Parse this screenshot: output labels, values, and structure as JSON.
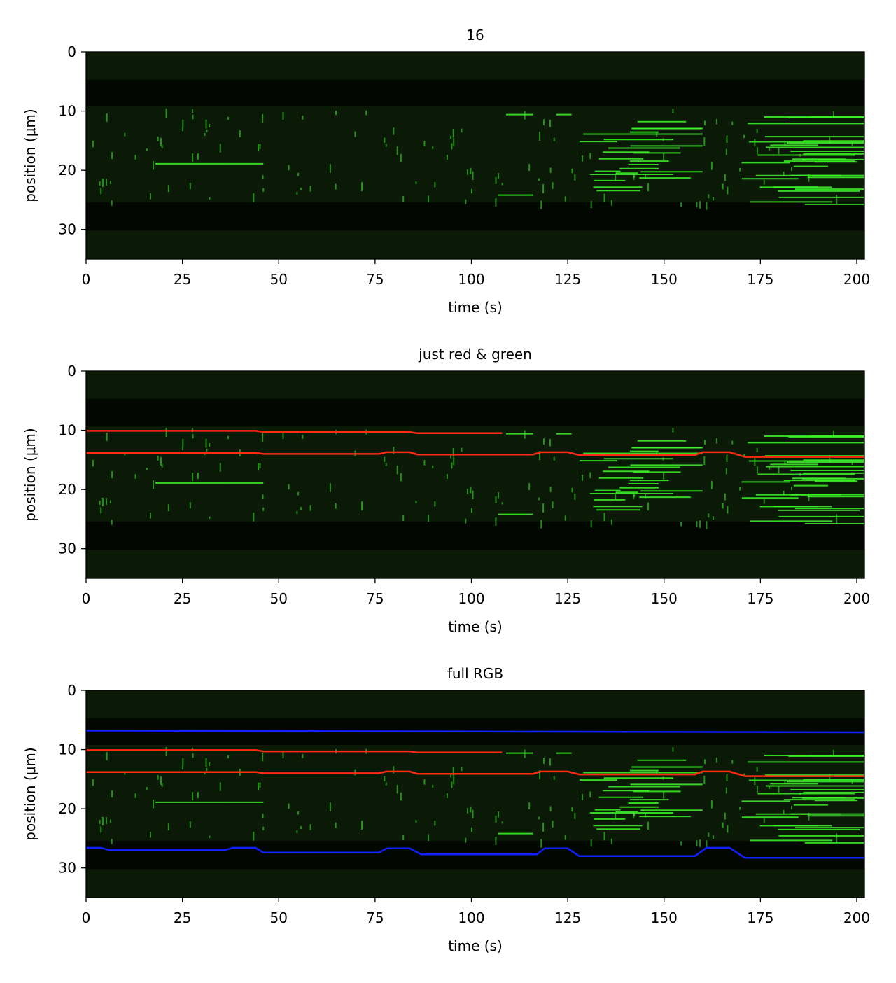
{
  "chart_data": [
    {
      "type": "heatmap",
      "title": "16",
      "xlabel": "time (s)",
      "ylabel": "position (μm)",
      "xlim": [
        0,
        202
      ],
      "ylim": [
        35,
        0
      ],
      "xticks": [
        "0",
        "25",
        "50",
        "75",
        "100",
        "125",
        "150",
        "175",
        "200"
      ],
      "yticks": [
        "0",
        "10",
        "20",
        "30"
      ],
      "colors": {
        "background": "#0b1a06",
        "dark_band": "#030702",
        "green": "#3ef52a",
        "red": "#ff2a10",
        "blue": "#1020ff"
      },
      "channels": [
        "green"
      ],
      "dark_bands": [
        [
          4.7,
          9.2
        ],
        [
          25.4,
          30.2
        ]
      ],
      "red_traces": [],
      "blue_traces": []
    },
    {
      "type": "heatmap",
      "title": "just red & green",
      "xlabel": "time (s)",
      "ylabel": "position (μm)",
      "xlim": [
        0,
        202
      ],
      "ylim": [
        35,
        0
      ],
      "xticks": [
        "0",
        "25",
        "50",
        "75",
        "100",
        "125",
        "150",
        "175",
        "200"
      ],
      "yticks": [
        "0",
        "10",
        "20",
        "30"
      ],
      "colors": {
        "background": "#0b1a06",
        "dark_band": "#030702",
        "green": "#3ef52a",
        "red": "#ff2a10",
        "blue": "#1020ff"
      },
      "channels": [
        "red",
        "green"
      ],
      "dark_bands": [
        [
          4.7,
          9.2
        ],
        [
          25.4,
          30.2
        ]
      ],
      "red_traces": [
        [
          [
            0,
            10.1
          ],
          [
            44,
            10.1
          ],
          [
            46,
            10.3
          ],
          [
            84,
            10.3
          ],
          [
            86,
            10.5
          ],
          [
            108,
            10.5
          ]
        ],
        [
          [
            0,
            13.8
          ],
          [
            44,
            13.8
          ],
          [
            46,
            14.0
          ],
          [
            76,
            14.0
          ],
          [
            78,
            13.7
          ],
          [
            84,
            13.7
          ],
          [
            86,
            14.1
          ],
          [
            116,
            14.1
          ],
          [
            118,
            13.7
          ],
          [
            125,
            13.7
          ],
          [
            128,
            14.2
          ],
          [
            158,
            14.2
          ],
          [
            160,
            13.7
          ],
          [
            167,
            13.7
          ],
          [
            171,
            14.5
          ],
          [
            202,
            14.5
          ]
        ]
      ],
      "blue_traces": []
    },
    {
      "type": "heatmap",
      "title": "full RGB",
      "xlabel": "time (s)",
      "ylabel": "position (μm)",
      "xlim": [
        0,
        202
      ],
      "ylim": [
        35,
        0
      ],
      "xticks": [
        "0",
        "25",
        "50",
        "75",
        "100",
        "125",
        "150",
        "175",
        "200"
      ],
      "yticks": [
        "0",
        "10",
        "20",
        "30"
      ],
      "colors": {
        "background": "#0b1a06",
        "dark_band": "#030702",
        "green": "#3ef52a",
        "red": "#ff2a10",
        "blue": "#1020ff"
      },
      "channels": [
        "red",
        "green",
        "blue"
      ],
      "dark_bands": [
        [
          4.7,
          9.2
        ],
        [
          25.4,
          30.2
        ]
      ],
      "red_traces": [
        [
          [
            0,
            10.1
          ],
          [
            44,
            10.1
          ],
          [
            46,
            10.3
          ],
          [
            84,
            10.3
          ],
          [
            86,
            10.5
          ],
          [
            108,
            10.5
          ]
        ],
        [
          [
            0,
            13.8
          ],
          [
            44,
            13.8
          ],
          [
            46,
            14.0
          ],
          [
            76,
            14.0
          ],
          [
            78,
            13.7
          ],
          [
            84,
            13.7
          ],
          [
            86,
            14.1
          ],
          [
            116,
            14.1
          ],
          [
            118,
            13.7
          ],
          [
            125,
            13.7
          ],
          [
            128,
            14.2
          ],
          [
            158,
            14.2
          ],
          [
            160,
            13.7
          ],
          [
            167,
            13.7
          ],
          [
            171,
            14.5
          ],
          [
            202,
            14.5
          ]
        ]
      ],
      "blue_traces": [
        [
          [
            0,
            6.8
          ],
          [
            202,
            7.1
          ]
        ],
        [
          [
            0,
            26.6
          ],
          [
            4,
            26.6
          ],
          [
            6,
            27.0
          ],
          [
            36,
            27.0
          ],
          [
            38,
            26.6
          ],
          [
            44,
            26.6
          ],
          [
            46,
            27.4
          ],
          [
            76,
            27.4
          ],
          [
            78,
            26.7
          ],
          [
            84,
            26.7
          ],
          [
            87,
            27.7
          ],
          [
            117,
            27.7
          ],
          [
            119,
            26.7
          ],
          [
            125,
            26.7
          ],
          [
            128,
            28.0
          ],
          [
            158,
            28.0
          ],
          [
            161,
            26.6
          ],
          [
            167,
            26.6
          ],
          [
            171,
            28.3
          ],
          [
            202,
            28.3
          ]
        ]
      ]
    }
  ]
}
